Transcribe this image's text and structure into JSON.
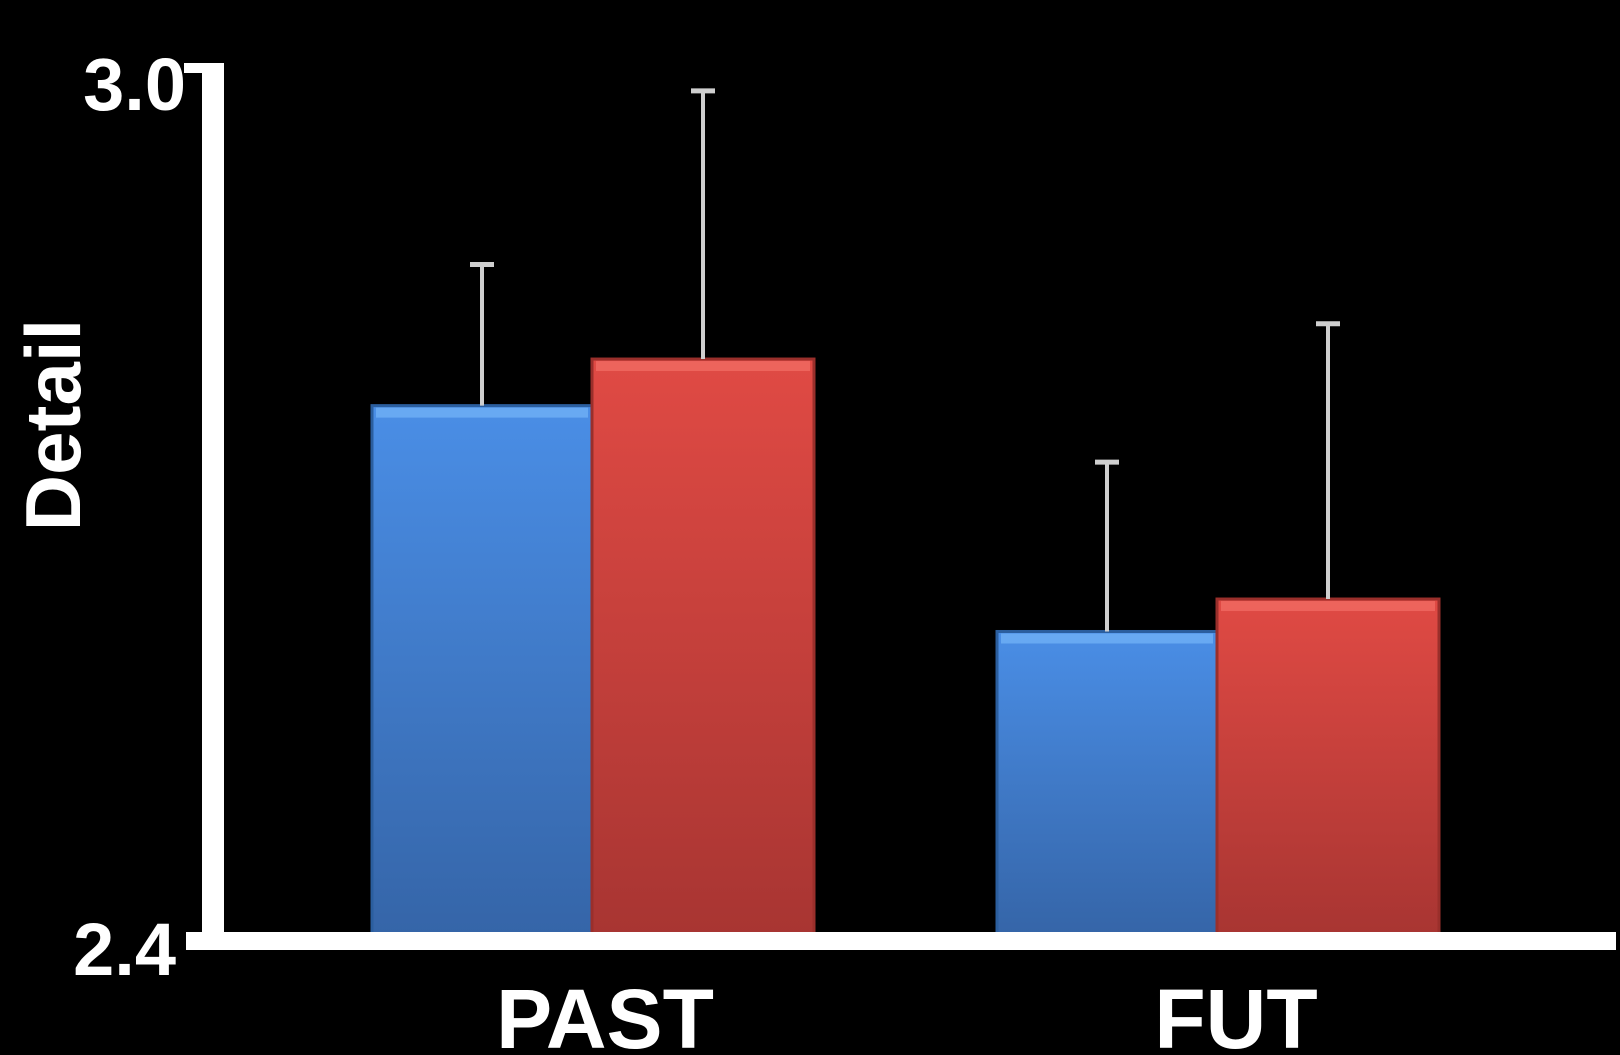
{
  "chart_data": {
    "type": "bar",
    "title": "",
    "xlabel": "",
    "ylabel": "Detail",
    "ylim": [
      2.4,
      3.0
    ],
    "yticks": [
      "3.0",
      "2.4"
    ],
    "categories": [
      "PAST",
      "FUT"
    ],
    "grid": false,
    "legend": "none",
    "series": [
      {
        "color": "#3f7fd0",
        "values": [
          2.775,
          2.615
        ],
        "error": [
          0.1,
          0.12
        ]
      },
      {
        "color": "#d03f3b",
        "values": [
          2.808,
          2.638
        ],
        "error": [
          0.19,
          0.195
        ]
      }
    ]
  }
}
